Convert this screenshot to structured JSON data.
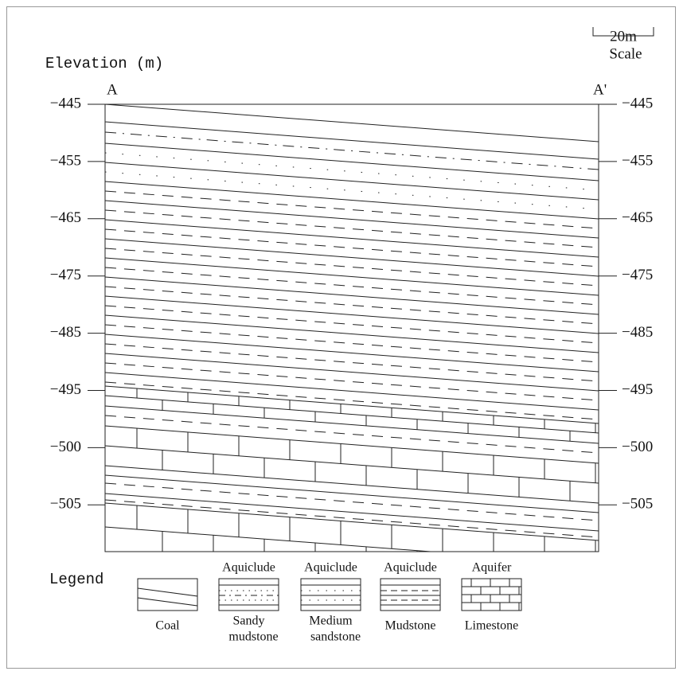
{
  "axis": {
    "title": "Elevation (m)",
    "ticks": [
      "−445",
      "−455",
      "−465",
      "−475",
      "−485",
      "−495",
      "−500",
      "−505"
    ]
  },
  "section": {
    "start": "A",
    "end": "A'"
  },
  "scale": {
    "length": "20m",
    "label": "Scale"
  },
  "legend": {
    "title": "Legend",
    "items": [
      {
        "name": [
          "Coal"
        ]
      },
      {
        "type": "Aquiclude",
        "name": [
          "Sandy",
          "mudstone"
        ]
      },
      {
        "type": "Aquiclude",
        "name": [
          "Medium",
          "sandstone"
        ]
      },
      {
        "type": "Aquiclude",
        "name": [
          "Mudstone"
        ]
      },
      {
        "type": "Aquifer",
        "name": [
          "Limestone"
        ]
      }
    ]
  }
}
